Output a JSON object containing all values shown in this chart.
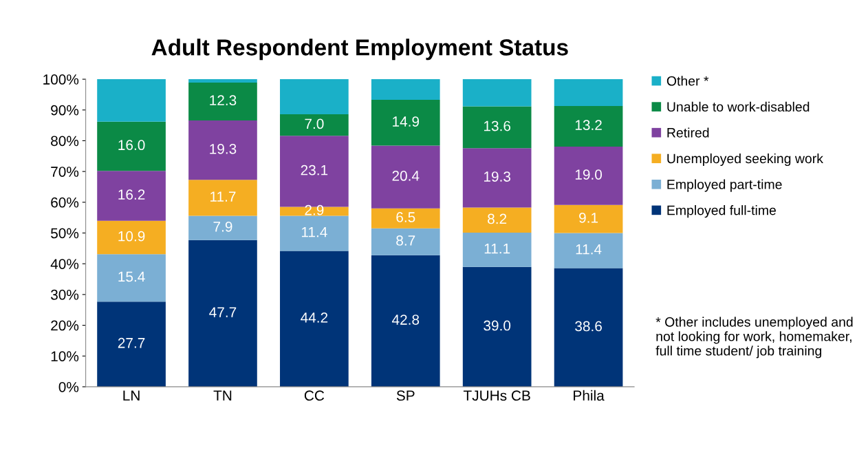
{
  "chart_data": {
    "type": "bar",
    "title": "Adult Respondent Employment Status",
    "stacked": true,
    "categories": [
      "LN",
      "TN",
      "CC",
      "SP",
      "TJUHs CB",
      "Phila"
    ],
    "series": [
      {
        "name": "Employed full-time",
        "color": "#003478",
        "values": [
          27.7,
          47.7,
          44.2,
          42.8,
          39.0,
          38.6
        ],
        "value_labels": [
          "27.7",
          "47.7",
          "44.2",
          "42.8",
          "39.0",
          "38.6"
        ]
      },
      {
        "name": "Employed part-time",
        "color": "#7bafd4",
        "values": [
          15.4,
          7.9,
          11.4,
          8.7,
          11.1,
          11.4
        ],
        "value_labels": [
          "15.4",
          "7.9",
          "11.4",
          "8.7",
          "11.1",
          "11.4"
        ]
      },
      {
        "name": "Unemployed seeking work",
        "color": "#f5ae22",
        "values": [
          10.9,
          11.7,
          2.9,
          6.5,
          8.2,
          9.1
        ],
        "value_labels": [
          "10.9",
          "11.7",
          "2.9",
          "6.5",
          "8.2",
          "9.1"
        ]
      },
      {
        "name": "Retired",
        "color": "#7f42a0",
        "values": [
          16.2,
          19.3,
          23.1,
          20.4,
          19.3,
          19.0
        ],
        "value_labels": [
          "16.2",
          "19.3",
          "23.1",
          "20.4",
          "19.3",
          "19.0"
        ]
      },
      {
        "name": "Unable to work-disabled",
        "color": "#0b8a46",
        "values": [
          16.0,
          12.3,
          7.0,
          14.9,
          13.6,
          13.2
        ],
        "value_labels": [
          "16.0",
          "12.3",
          "7.0",
          "14.9",
          "13.6",
          "13.2"
        ]
      },
      {
        "name": "Other *",
        "color": "#1ab0c8",
        "values": [
          13.8,
          1.1,
          11.4,
          6.7,
          8.8,
          8.7
        ],
        "value_labels": [
          null,
          null,
          null,
          null,
          null,
          null
        ]
      }
    ],
    "ylim": [
      0,
      100
    ],
    "yticks": [
      {
        "value": 0,
        "label": "0%"
      },
      {
        "value": 10,
        "label": "10%"
      },
      {
        "value": 20,
        "label": "20%"
      },
      {
        "value": 30,
        "label": "30%"
      },
      {
        "value": 40,
        "label": "40%"
      },
      {
        "value": 50,
        "label": "50%"
      },
      {
        "value": 60,
        "label": "60%"
      },
      {
        "value": 70,
        "label": "70%"
      },
      {
        "value": 80,
        "label": "80%"
      },
      {
        "value": 90,
        "label": "90%"
      },
      {
        "value": 100,
        "label": "100%"
      }
    ],
    "legend": "right",
    "grid": false,
    "annotations": [
      "* Other includes unemployed and not looking for work, homemaker, full time student/ job training"
    ]
  }
}
